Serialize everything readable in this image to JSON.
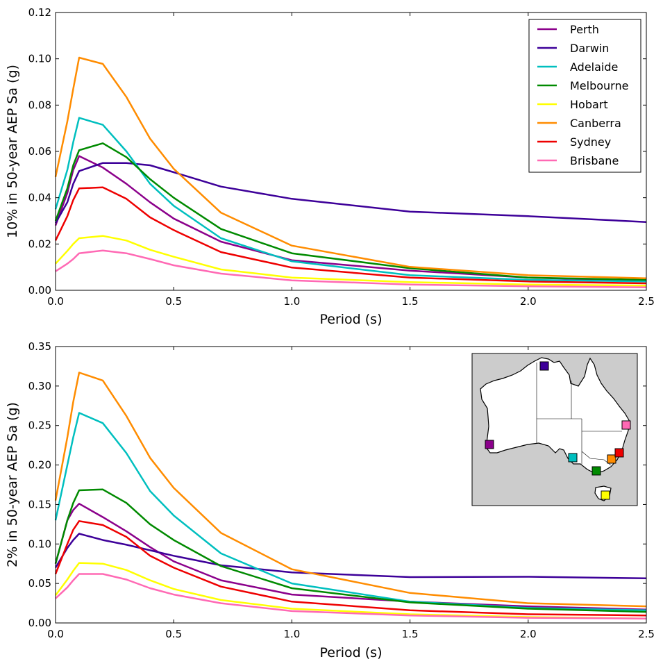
{
  "chart_data": [
    {
      "type": "line",
      "title": "",
      "xlabel": "Period (s)",
      "ylabel": "10% in 50-year AEP Sa (g)",
      "xlim": [
        0,
        2.5
      ],
      "ylim": [
        0,
        0.12
      ],
      "xticks": [
        "0.0",
        "0.5",
        "1.0",
        "1.5",
        "2.0",
        "2.5"
      ],
      "yticks": [
        "0.00",
        "0.02",
        "0.04",
        "0.06",
        "0.08",
        "0.10",
        "0.12"
      ],
      "legend_position": "top-right",
      "grid": false,
      "x": [
        0,
        0.05,
        0.075,
        0.1,
        0.2,
        0.3,
        0.4,
        0.5,
        0.7,
        1.0,
        1.5,
        2.0,
        2.5
      ],
      "series": [
        {
          "name": "Perth",
          "color": "#8b008b",
          "values": [
            0.028,
            0.042,
            0.052,
            0.058,
            0.053,
            0.046,
            0.038,
            0.031,
            0.021,
            0.013,
            0.0085,
            0.0055,
            0.004
          ]
        },
        {
          "name": "Darwin",
          "color": "#3d0099",
          "values": [
            0.029,
            0.038,
            0.046,
            0.0515,
            0.055,
            0.055,
            0.054,
            0.051,
            0.0448,
            0.0395,
            0.034,
            0.032,
            0.0295
          ]
        },
        {
          "name": "Adelaide",
          "color": "#00bfbf",
          "values": [
            0.035,
            0.052,
            0.064,
            0.0745,
            0.0715,
            0.06,
            0.046,
            0.0365,
            0.0225,
            0.0125,
            0.0065,
            0.0045,
            0.0038
          ]
        },
        {
          "name": "Melbourne",
          "color": "#008a00",
          "values": [
            0.03,
            0.044,
            0.054,
            0.0605,
            0.0635,
            0.0575,
            0.048,
            0.04,
            0.0265,
            0.016,
            0.0095,
            0.0055,
            0.0045
          ]
        },
        {
          "name": "Hobart",
          "color": "#ffff00",
          "values": [
            0.0115,
            0.017,
            0.02,
            0.0225,
            0.0235,
            0.0215,
            0.0175,
            0.0145,
            0.009,
            0.0055,
            0.0035,
            0.0025,
            0.002
          ]
        },
        {
          "name": "Canberra",
          "color": "#ff8c00",
          "values": [
            0.049,
            0.073,
            0.087,
            0.1005,
            0.0978,
            0.0835,
            0.0655,
            0.0525,
            0.0335,
            0.0193,
            0.0101,
            0.0065,
            0.0052
          ]
        },
        {
          "name": "Sydney",
          "color": "#ee0000",
          "values": [
            0.0215,
            0.032,
            0.039,
            0.044,
            0.0445,
            0.0395,
            0.0315,
            0.026,
            0.0165,
            0.0098,
            0.0055,
            0.0038,
            0.003
          ]
        },
        {
          "name": "Brisbane",
          "color": "#ff69b4",
          "values": [
            0.0082,
            0.0115,
            0.0135,
            0.016,
            0.0172,
            0.016,
            0.0135,
            0.0108,
            0.0072,
            0.0043,
            0.0025,
            0.0017,
            0.0013
          ]
        }
      ]
    },
    {
      "type": "line",
      "title": "",
      "xlabel": "Period (s)",
      "ylabel": "2% in 50-year AEP Sa (g)",
      "xlim": [
        0,
        2.5
      ],
      "ylim": [
        0,
        0.35
      ],
      "xticks": [
        "0.0",
        "0.5",
        "1.0",
        "1.5",
        "2.0",
        "2.5"
      ],
      "yticks": [
        "0.00",
        "0.05",
        "0.10",
        "0.15",
        "0.20",
        "0.25",
        "0.30",
        "0.35"
      ],
      "grid": false,
      "inset": "map of Australia with colored city markers (top-right)",
      "x": [
        0,
        0.05,
        0.075,
        0.1,
        0.2,
        0.3,
        0.4,
        0.5,
        0.7,
        1.0,
        1.5,
        2.0,
        2.5
      ],
      "series": [
        {
          "name": "Perth",
          "color": "#8b008b",
          "values": [
            0.075,
            0.13,
            0.143,
            0.151,
            0.134,
            0.116,
            0.096,
            0.078,
            0.054,
            0.036,
            0.027,
            0.021,
            0.017
          ]
        },
        {
          "name": "Darwin",
          "color": "#3d0099",
          "values": [
            0.07,
            0.095,
            0.105,
            0.113,
            0.105,
            0.099,
            0.092,
            0.085,
            0.073,
            0.064,
            0.058,
            0.0585,
            0.0565
          ]
        },
        {
          "name": "Adelaide",
          "color": "#00bfbf",
          "values": [
            0.13,
            0.2,
            0.235,
            0.266,
            0.253,
            0.215,
            0.167,
            0.136,
            0.088,
            0.05,
            0.027,
            0.019,
            0.016
          ]
        },
        {
          "name": "Melbourne",
          "color": "#008a00",
          "values": [
            0.075,
            0.13,
            0.152,
            0.168,
            0.169,
            0.152,
            0.125,
            0.105,
            0.072,
            0.044,
            0.026,
            0.018,
            0.014
          ]
        },
        {
          "name": "Hobart",
          "color": "#ffff00",
          "values": [
            0.035,
            0.055,
            0.066,
            0.076,
            0.075,
            0.067,
            0.054,
            0.043,
            0.029,
            0.018,
            0.011,
            0.0075,
            0.0055
          ]
        },
        {
          "name": "Canberra",
          "color": "#ff8c00",
          "values": [
            0.155,
            0.235,
            0.28,
            0.317,
            0.307,
            0.262,
            0.209,
            0.171,
            0.114,
            0.068,
            0.038,
            0.025,
            0.021
          ]
        },
        {
          "name": "Sydney",
          "color": "#ee0000",
          "values": [
            0.062,
            0.1,
            0.118,
            0.129,
            0.124,
            0.109,
            0.085,
            0.07,
            0.046,
            0.027,
            0.016,
            0.011,
            0.0095
          ]
        },
        {
          "name": "Brisbane",
          "color": "#ff69b4",
          "values": [
            0.031,
            0.045,
            0.054,
            0.062,
            0.062,
            0.055,
            0.044,
            0.036,
            0.025,
            0.015,
            0.0095,
            0.0065,
            0.0055
          ]
        }
      ]
    }
  ]
}
